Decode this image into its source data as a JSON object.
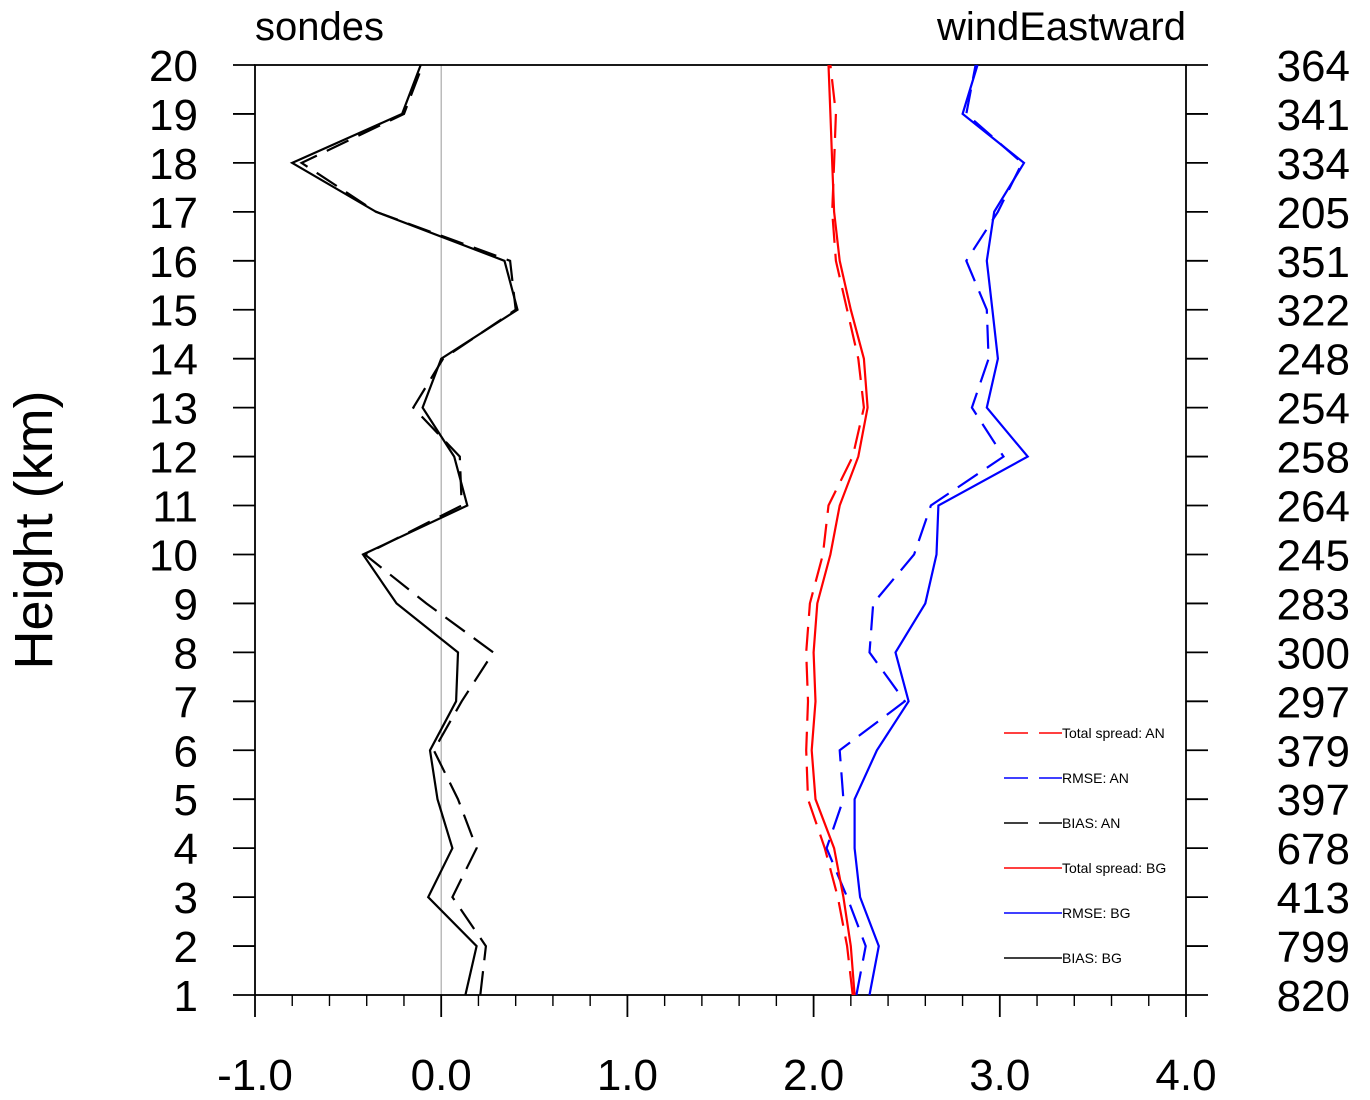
{
  "chart_data": {
    "type": "line",
    "title_left": "sondes",
    "title_right": "windEastward",
    "ylabel": "Height (km)",
    "xlabel": "",
    "xlim": [
      -1.0,
      4.0
    ],
    "ylim": [
      1,
      20
    ],
    "x_ticks": [
      "-1.0",
      "0.0",
      "1.0",
      "2.0",
      "3.0",
      "4.0"
    ],
    "y_ticks": [
      "1",
      "2",
      "3",
      "4",
      "5",
      "6",
      "7",
      "8",
      "9",
      "10",
      "11",
      "12",
      "13",
      "14",
      "15",
      "16",
      "17",
      "18",
      "19",
      "20"
    ],
    "heights": [
      1,
      2,
      3,
      4,
      5,
      6,
      7,
      8,
      9,
      10,
      11,
      12,
      13,
      14,
      15,
      16,
      17,
      18,
      19,
      20
    ],
    "counts": [
      "820",
      "799",
      "413",
      "678",
      "397",
      "379",
      "297",
      "300",
      "283",
      "245",
      "264",
      "258",
      "254",
      "248",
      "322",
      "351",
      "205",
      "334",
      "341",
      "364"
    ],
    "grid": false,
    "legend_position": "bottom-right",
    "series": [
      {
        "name": "Total spread: AN",
        "color": "#ff0000",
        "dash": "dashed",
        "values": [
          2.21,
          2.18,
          2.13,
          2.06,
          1.97,
          1.96,
          1.97,
          1.96,
          1.98,
          2.05,
          2.08,
          2.21,
          2.27,
          2.24,
          2.18,
          2.12,
          2.1,
          2.11,
          2.12,
          2.09
        ]
      },
      {
        "name": "RMSE: AN",
        "color": "#0000ff",
        "dash": "dashed",
        "values": [
          2.23,
          2.28,
          2.18,
          2.07,
          2.16,
          2.14,
          2.49,
          2.3,
          2.32,
          2.54,
          2.63,
          3.02,
          2.85,
          2.94,
          2.93,
          2.82,
          2.99,
          3.12,
          2.82,
          2.87
        ]
      },
      {
        "name": "BIAS: AN",
        "color": "#000000",
        "dash": "dashed",
        "values": [
          0.21,
          0.24,
          0.06,
          0.19,
          0.09,
          -0.04,
          0.11,
          0.28,
          -0.08,
          -0.41,
          0.11,
          0.1,
          -0.15,
          0.01,
          0.4,
          0.37,
          -0.35,
          -0.75,
          -0.2,
          -0.1
        ]
      },
      {
        "name": "Total spread: BG",
        "color": "#ff0000",
        "dash": "solid",
        "values": [
          2.22,
          2.2,
          2.16,
          2.11,
          2.01,
          1.99,
          2.01,
          2.0,
          2.02,
          2.09,
          2.14,
          2.24,
          2.29,
          2.27,
          2.2,
          2.14,
          2.11,
          2.1,
          2.09,
          2.08
        ]
      },
      {
        "name": "RMSE: BG",
        "color": "#0000ff",
        "dash": "solid",
        "values": [
          2.3,
          2.35,
          2.25,
          2.22,
          2.22,
          2.34,
          2.51,
          2.44,
          2.6,
          2.66,
          2.67,
          3.15,
          2.93,
          2.99,
          2.96,
          2.93,
          2.97,
          3.13,
          2.8,
          2.88
        ]
      },
      {
        "name": "BIAS: BG",
        "color": "#000000",
        "dash": "solid",
        "values": [
          0.13,
          0.19,
          -0.07,
          0.06,
          -0.02,
          -0.06,
          0.08,
          0.09,
          -0.24,
          -0.42,
          0.14,
          0.07,
          -0.1,
          0.0,
          0.41,
          0.34,
          -0.35,
          -0.8,
          -0.21,
          -0.11
        ]
      }
    ]
  }
}
